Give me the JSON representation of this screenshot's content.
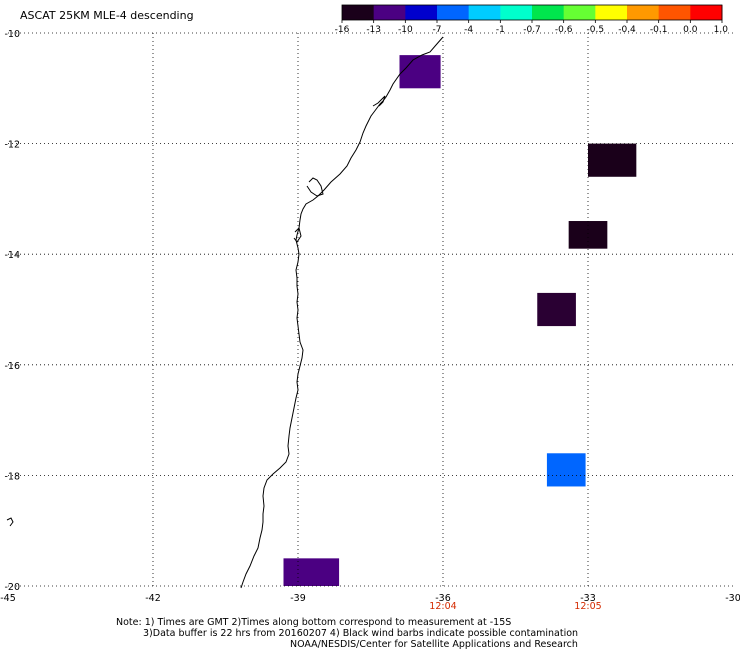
{
  "header": {
    "title": "ASCAT 25KM MLE-4 descending"
  },
  "colorbar": {
    "colors": [
      "#1a001a",
      "#4b0082",
      "#0000cd",
      "#0066ff",
      "#00ccff",
      "#00ffcc",
      "#00e64d",
      "#66ff33",
      "#ffff00",
      "#ff9900",
      "#ff5500",
      "#ff0000"
    ],
    "labels": [
      "-16",
      "-13",
      "-10",
      "-7",
      "-4",
      "-1",
      "-0.7",
      "-0.6",
      "-0.5",
      "-0.4",
      "-0.1",
      "0.0",
      "1.0"
    ]
  },
  "map": {
    "lon_range": [
      -45,
      -30
    ],
    "lat_range": [
      -20,
      -10
    ],
    "lon_ticks": [
      "-45",
      "-42",
      "-39",
      "-36",
      "-33",
      "-30"
    ],
    "lat_ticks": [
      "-10",
      "-12",
      "-14",
      "-16",
      "-18",
      "-20"
    ],
    "times": [
      {
        "label": "12:04",
        "lon": -36,
        "color": "#d42a00"
      },
      {
        "label": "12:05",
        "lon": -33,
        "color": "#d42a00"
      }
    ],
    "cells": [
      {
        "lon0": -36.9,
        "lon1": -36.05,
        "lat0": -11.0,
        "lat1": -10.4,
        "color": "#4b0082"
      },
      {
        "lon0": -33.0,
        "lon1": -32.0,
        "lat0": -12.6,
        "lat1": -12.0,
        "color": "#1a001a"
      },
      {
        "lon0": -33.4,
        "lon1": -32.6,
        "lat0": -13.9,
        "lat1": -13.4,
        "color": "#1a001a"
      },
      {
        "lon0": -34.05,
        "lon1": -33.25,
        "lat0": -15.3,
        "lat1": -14.7,
        "color": "#2a0033"
      },
      {
        "lon0": -33.85,
        "lon1": -33.05,
        "lat0": -18.2,
        "lat1": -17.6,
        "color": "#0066ff"
      },
      {
        "lon0": -39.3,
        "lon1": -38.15,
        "lat0": -20.0,
        "lat1": -19.5,
        "color": "#4b0082"
      }
    ],
    "coastline_color": "#000000"
  },
  "notes": {
    "line1": "Note: 1) Times are GMT 2)Times along bottom correspond to measurement at -15S",
    "line2": "3)Data buffer is 22 hrs from 20160207 4) Black wind barbs indicate possible contamination",
    "line3": "NOAA/NESDIS/Center for Satellite Applications and Research"
  }
}
